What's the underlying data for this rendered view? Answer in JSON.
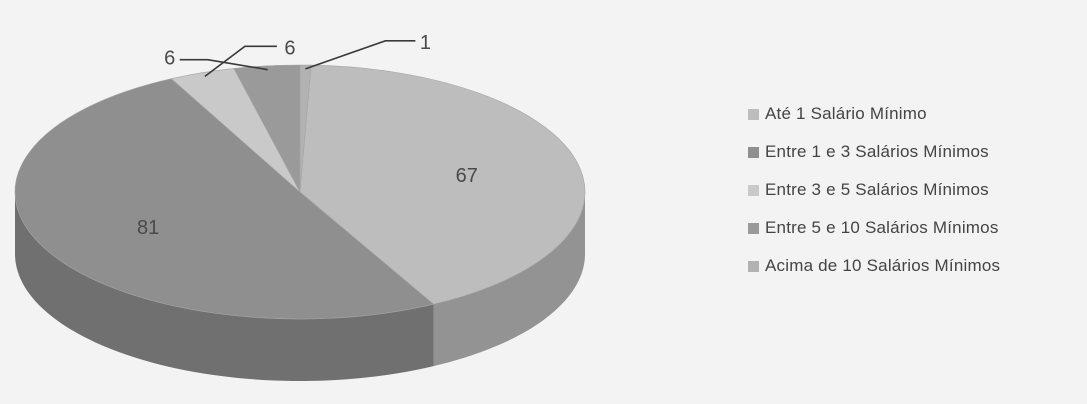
{
  "chart_data": {
    "type": "pie",
    "title": "",
    "style": "3d",
    "categories": [
      "Até 1 Salário Mínimo",
      "Entre 1 e 3 Salários Mínimos",
      "Entre 3 e 5 Salários Mínimos",
      "Entre 5 e 10 Salários Mínimos",
      "Acima de 10 Salários Mínimos"
    ],
    "values": [
      67,
      81,
      6,
      6,
      1
    ],
    "colors": [
      "#bdbdbd",
      "#8f8f8f",
      "#c9c9c9",
      "#9a9a9a",
      "#b2b2b2"
    ],
    "data_labels": [
      "67",
      "81",
      "6",
      "6",
      "1"
    ],
    "legend_position": "right"
  }
}
